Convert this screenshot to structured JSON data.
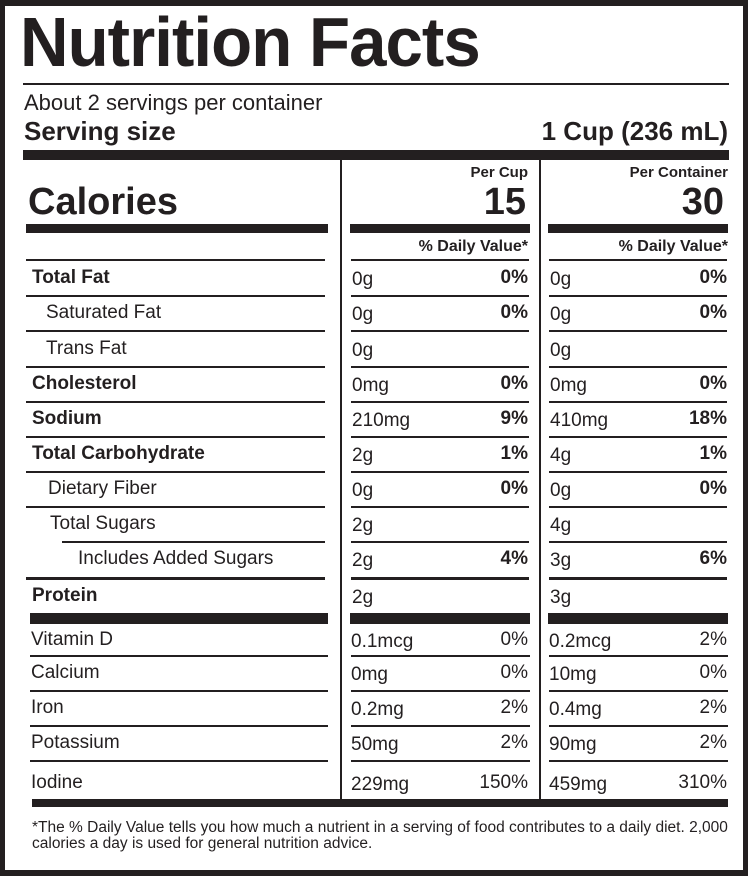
{
  "label": {
    "title": "Nutrition Facts",
    "servings_per_container": "About 2 servings per container",
    "serving_size_label": "Serving size",
    "serving_size_value": "1 Cup (236 mL)",
    "calories_label": "Calories",
    "columns": [
      {
        "header": "Per Cup",
        "calories": "15",
        "dv_header": "% Daily Value*"
      },
      {
        "header": "Per Container",
        "calories": "30",
        "dv_header": "% Daily Value*"
      }
    ],
    "nutrients": [
      {
        "name": "Total Fat",
        "bold": true,
        "indent": 0,
        "per_cup": {
          "amount": "0g",
          "dv": "0%"
        },
        "per_container": {
          "amount": "0g",
          "dv": "0%"
        }
      },
      {
        "name": "Saturated Fat",
        "bold": false,
        "indent": 1,
        "per_cup": {
          "amount": "0g",
          "dv": "0%"
        },
        "per_container": {
          "amount": "0g",
          "dv": "0%"
        }
      },
      {
        "name": "Trans Fat",
        "bold": false,
        "indent": 1,
        "per_cup": {
          "amount": "0g",
          "dv": ""
        },
        "per_container": {
          "amount": "0g",
          "dv": ""
        }
      },
      {
        "name": "Cholesterol",
        "bold": true,
        "indent": 0,
        "per_cup": {
          "amount": "0mg",
          "dv": "0%"
        },
        "per_container": {
          "amount": "0mg",
          "dv": "0%"
        }
      },
      {
        "name": "Sodium",
        "bold": true,
        "indent": 0,
        "per_cup": {
          "amount": "210mg",
          "dv": "9%"
        },
        "per_container": {
          "amount": "410mg",
          "dv": "18%"
        }
      },
      {
        "name": "Total Carbohydrate",
        "bold": true,
        "indent": 0,
        "per_cup": {
          "amount": "2g",
          "dv": "1%"
        },
        "per_container": {
          "amount": "4g",
          "dv": "1%"
        }
      },
      {
        "name": "Dietary Fiber",
        "bold": false,
        "indent": 1,
        "per_cup": {
          "amount": "0g",
          "dv": "0%"
        },
        "per_container": {
          "amount": "0g",
          "dv": "0%"
        }
      },
      {
        "name": "Total Sugars",
        "bold": false,
        "indent": 1,
        "per_cup": {
          "amount": "2g",
          "dv": ""
        },
        "per_container": {
          "amount": "4g",
          "dv": ""
        }
      },
      {
        "name": "Includes Added Sugars",
        "bold": false,
        "indent": 2,
        "per_cup": {
          "amount": "2g",
          "dv": "4%"
        },
        "per_container": {
          "amount": "3g",
          "dv": "6%"
        }
      },
      {
        "name": "Protein",
        "bold": true,
        "indent": 0,
        "per_cup": {
          "amount": "2g",
          "dv": ""
        },
        "per_container": {
          "amount": "3g",
          "dv": ""
        }
      }
    ],
    "vitamins": [
      {
        "name": "Vitamin D",
        "per_cup": {
          "amount": "0.1mcg",
          "dv": "0%"
        },
        "per_container": {
          "amount": "0.2mcg",
          "dv": "2%"
        }
      },
      {
        "name": "Calcium",
        "per_cup": {
          "amount": "0mg",
          "dv": "0%"
        },
        "per_container": {
          "amount": "10mg",
          "dv": "0%"
        }
      },
      {
        "name": "Iron",
        "per_cup": {
          "amount": "0.2mg",
          "dv": "2%"
        },
        "per_container": {
          "amount": "0.4mg",
          "dv": "2%"
        }
      },
      {
        "name": "Potassium",
        "per_cup": {
          "amount": "50mg",
          "dv": "2%"
        },
        "per_container": {
          "amount": "90mg",
          "dv": "2%"
        }
      },
      {
        "name": "Iodine",
        "per_cup": {
          "amount": "229mg",
          "dv": "150%"
        },
        "per_container": {
          "amount": "459mg",
          "dv": "310%"
        }
      }
    ],
    "footnote": "*The % Daily Value tells you how much a nutrient in a serving of food contributes to a daily diet. 2,000 calories a day is used for general nutrition advice."
  }
}
